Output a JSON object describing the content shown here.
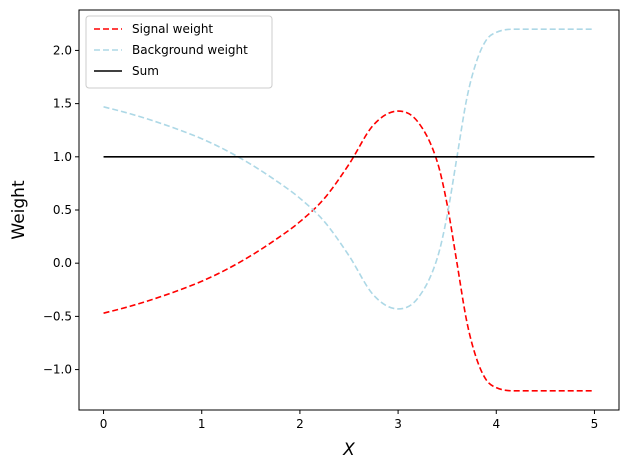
{
  "chart_data": {
    "type": "line",
    "xlabel": "X",
    "ylabel": "Weight",
    "xlim": [
      -0.25,
      5.25
    ],
    "ylim": [
      -1.38,
      2.38
    ],
    "grid": false,
    "legend_position": "top-left",
    "x_ticks": [
      {
        "value": 0,
        "label": "0"
      },
      {
        "value": 1,
        "label": "1"
      },
      {
        "value": 2,
        "label": "2"
      },
      {
        "value": 3,
        "label": "3"
      },
      {
        "value": 4,
        "label": "4"
      },
      {
        "value": 5,
        "label": "5"
      }
    ],
    "y_ticks": [
      {
        "value": -1.0,
        "label": "−1.0"
      },
      {
        "value": -0.5,
        "label": "−0.5"
      },
      {
        "value": 0.0,
        "label": "0.0"
      },
      {
        "value": 0.5,
        "label": "0.5"
      },
      {
        "value": 1.0,
        "label": "1.0"
      },
      {
        "value": 1.5,
        "label": "1.5"
      },
      {
        "value": 2.0,
        "label": "2.0"
      }
    ],
    "series": [
      {
        "name": "Signal weight",
        "color": "#ff0000",
        "style": "dashed",
        "x": [
          0,
          0.25,
          0.5,
          0.75,
          1.0,
          1.25,
          1.5,
          1.75,
          2.0,
          2.25,
          2.5,
          2.75,
          3.0,
          3.2,
          3.4,
          3.5,
          3.6,
          3.7,
          3.8,
          3.9,
          4.0,
          4.2,
          4.5,
          5.0
        ],
        "y": [
          -0.47,
          -0.41,
          -0.34,
          -0.26,
          -0.17,
          -0.06,
          0.07,
          0.22,
          0.39,
          0.61,
          0.93,
          1.3,
          1.43,
          1.33,
          0.95,
          0.55,
          0.0,
          -0.55,
          -0.9,
          -1.1,
          -1.17,
          -1.2,
          -1.2,
          -1.2
        ]
      },
      {
        "name": "Background weight",
        "color": "#add8e6",
        "style": "dashed",
        "x": [
          0,
          0.25,
          0.5,
          0.75,
          1.0,
          1.25,
          1.5,
          1.75,
          2.0,
          2.25,
          2.5,
          2.75,
          3.0,
          3.2,
          3.4,
          3.5,
          3.6,
          3.7,
          3.8,
          3.9,
          4.0,
          4.2,
          4.5,
          5.0
        ],
        "y": [
          1.47,
          1.41,
          1.34,
          1.26,
          1.17,
          1.06,
          0.93,
          0.78,
          0.61,
          0.39,
          0.07,
          -0.3,
          -0.43,
          -0.33,
          0.05,
          0.45,
          1.0,
          1.55,
          1.9,
          2.1,
          2.17,
          2.2,
          2.2,
          2.2
        ]
      },
      {
        "name": "Sum",
        "color": "#000000",
        "style": "solid",
        "x": [
          0,
          5
        ],
        "y": [
          1.0,
          1.0
        ]
      }
    ]
  }
}
